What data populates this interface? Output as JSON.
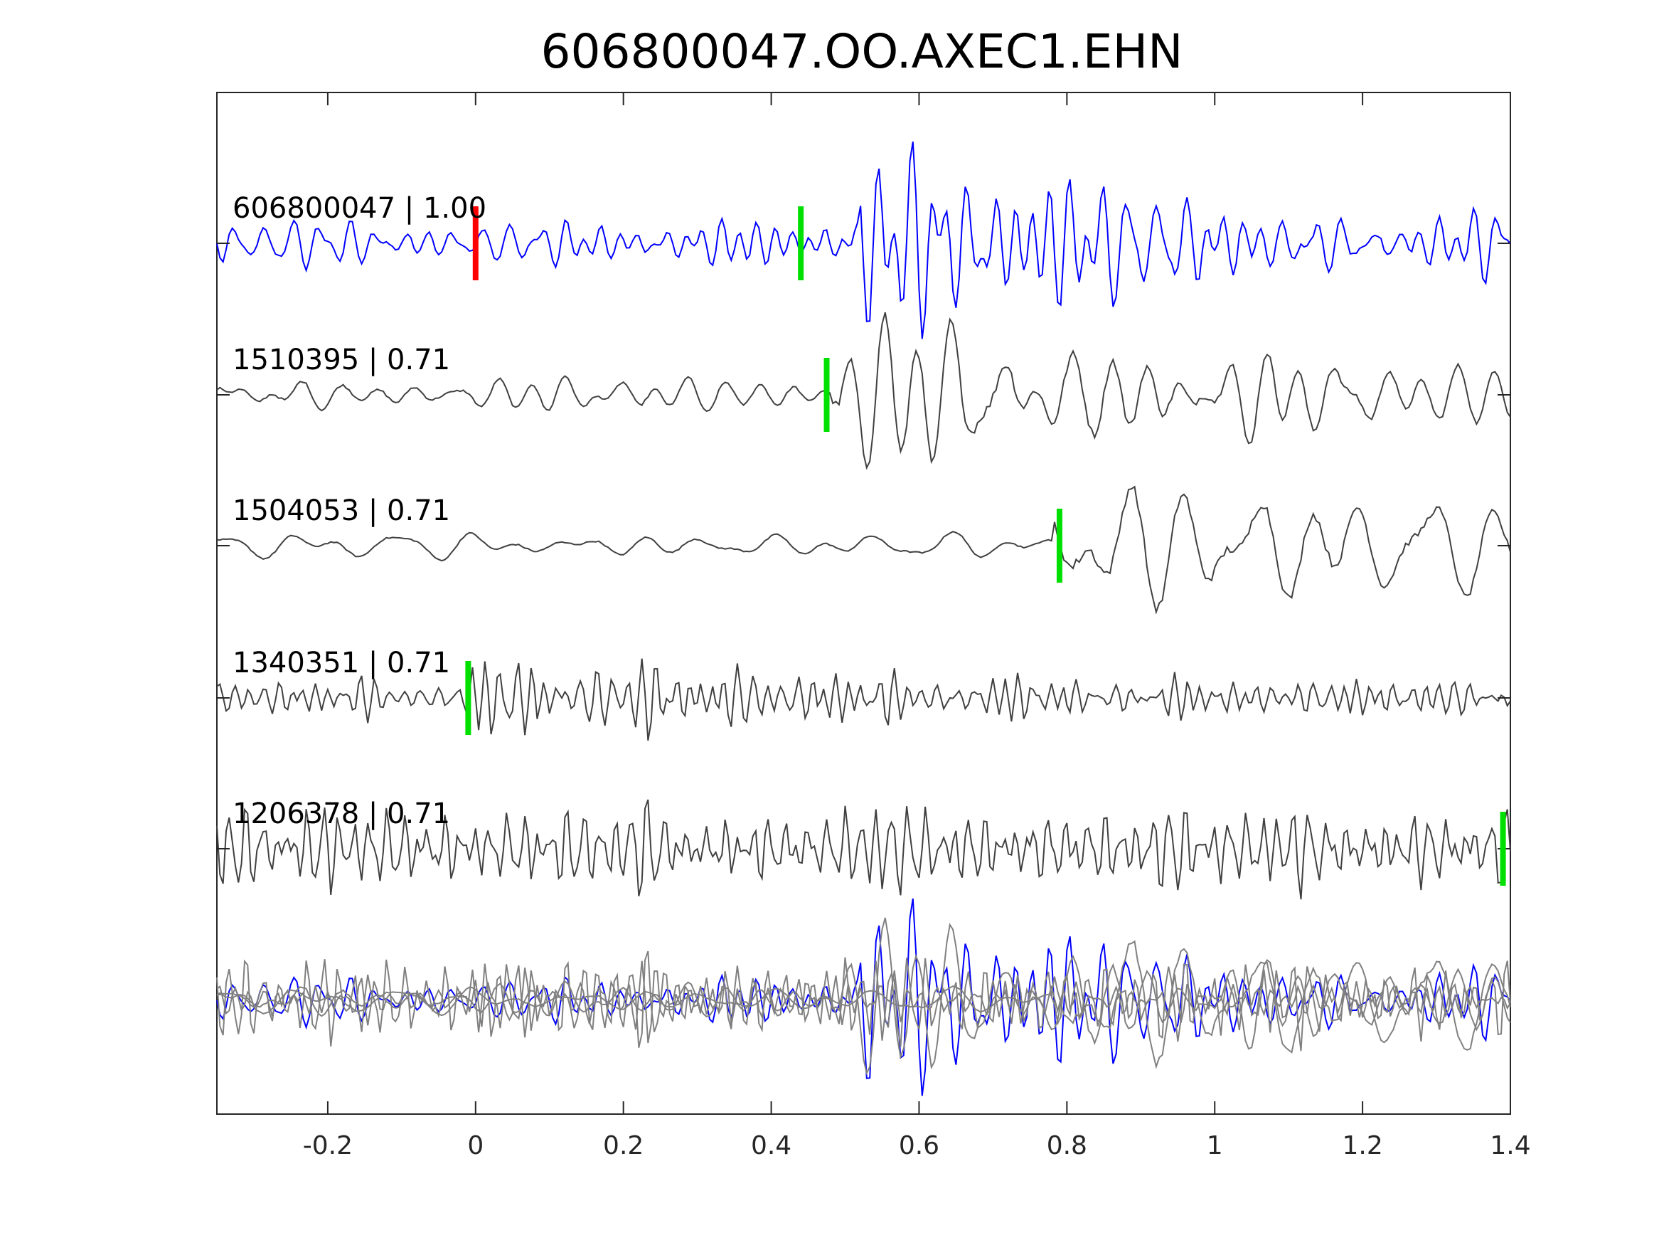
{
  "chart_data": {
    "type": "line",
    "title": "606800047.OO.AXEC1.EHN",
    "xlabel": "",
    "ylabel": "",
    "xlim": [
      -0.35,
      1.4
    ],
    "xticks": [
      -0.2,
      0,
      0.2,
      0.4,
      0.6,
      0.8,
      1,
      1.2,
      1.4
    ],
    "xtick_labels": [
      "-0.2",
      "0",
      "0.2",
      "0.4",
      "0.6",
      "0.8",
      "1",
      "1.2",
      "1.4"
    ],
    "grid": false,
    "traces": [
      {
        "label": "606800047 | 1.00",
        "color": "#0000ff",
        "red_pick": 0.0,
        "green_pick": 0.44,
        "arrival": 0.52,
        "period": 0.03,
        "amp_pre": 0.35,
        "amp_post": 1.0
      },
      {
        "label": "1510395 | 0.71",
        "color": "#404040",
        "green_pick": 0.475,
        "arrival": 0.48,
        "period": 0.06,
        "amp_pre": 0.3,
        "amp_post": 1.2
      },
      {
        "label": "1504053 | 0.71",
        "color": "#404040",
        "green_pick": 0.79,
        "arrival": 0.78,
        "period": 0.09,
        "amp_pre": 0.2,
        "amp_post": 1.3
      },
      {
        "label": "1340351 | 0.71",
        "color": "#404040",
        "green_pick": -0.01,
        "arrival": -0.01,
        "period": 0.022,
        "amp_pre": 0.3,
        "amp_post": 0.6
      },
      {
        "label": "1206378 | 0.71",
        "color": "#404040",
        "green_pick": 1.39,
        "arrival": -0.35,
        "period": 0.02,
        "amp_pre": 0.7,
        "amp_post": 0.7
      }
    ],
    "overlay": {
      "description_color_ref": "#0000ff",
      "others_color": "#808080"
    },
    "pick_colors": {
      "red": "#ff0000",
      "green": "#00e000"
    }
  }
}
